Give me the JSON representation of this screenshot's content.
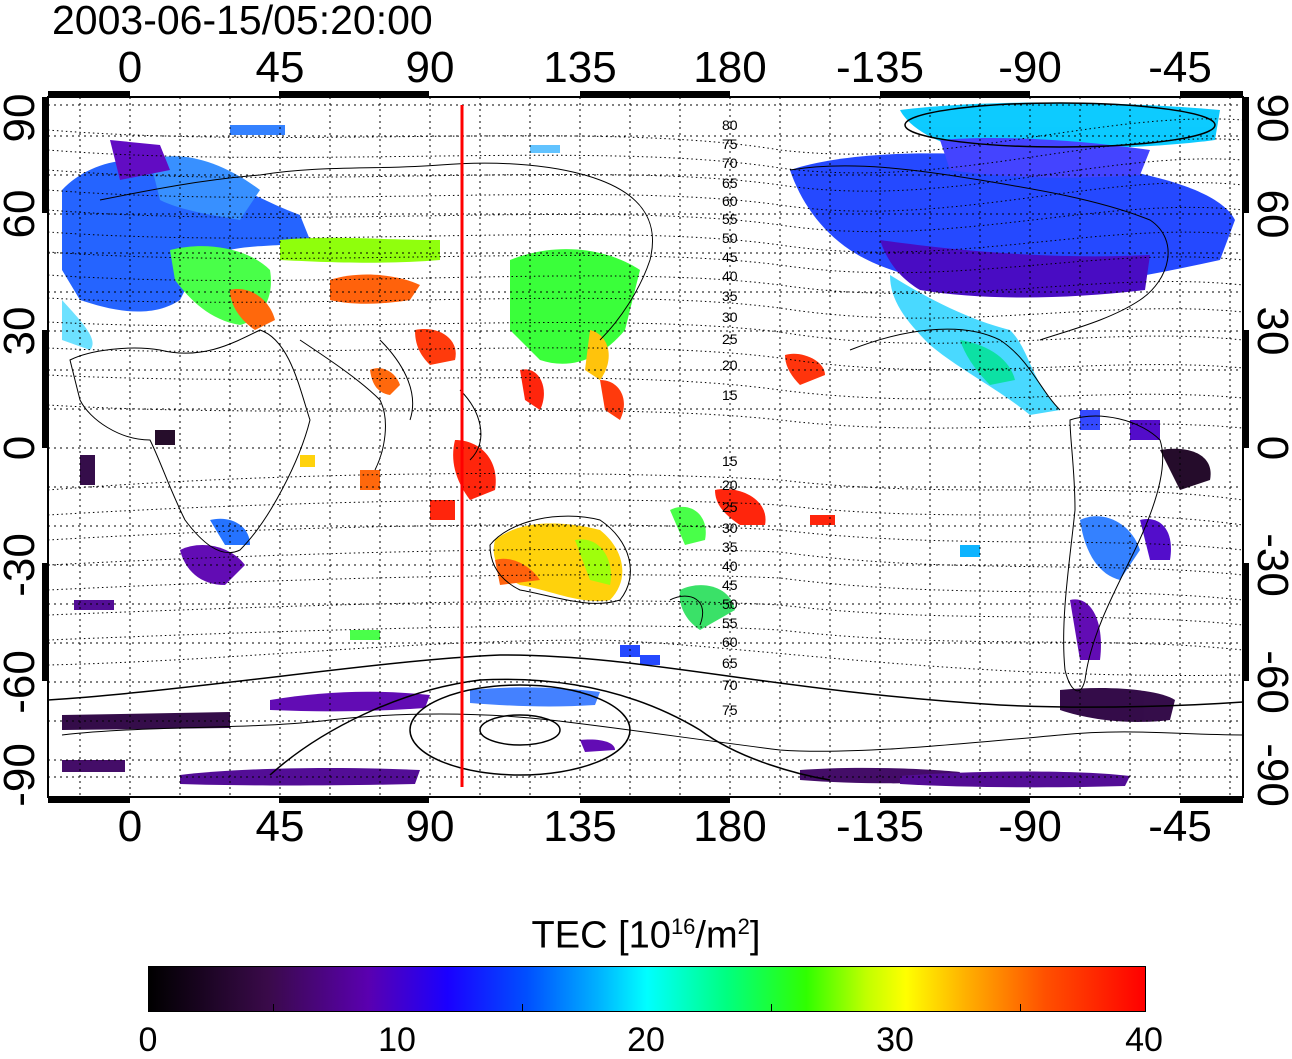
{
  "title": "2003-06-15/05:20:00",
  "lon_ticks": [
    "0",
    "45",
    "90",
    "135",
    "180",
    "-135",
    "-90",
    "-45"
  ],
  "lat_ticks": [
    "90",
    "60",
    "30",
    "0",
    "-30",
    "-60",
    "-90"
  ],
  "contour_labels": [
    "80",
    "75",
    "70",
    "65",
    "60",
    "55",
    "50",
    "45",
    "40",
    "35",
    "30",
    "25",
    "20",
    "15",
    "15",
    "20",
    "25",
    "30",
    "35",
    "40",
    "45",
    "50",
    "55",
    "60",
    "65",
    "70",
    "75"
  ],
  "colorbar": {
    "title": "TEC  [10",
    "title_sup1": "16",
    "title_mid": "/m",
    "title_sup2": "2",
    "title_end": "]",
    "ticks": [
      "0",
      "10",
      "20",
      "30",
      "40"
    ],
    "range": [
      0,
      40
    ]
  },
  "map": {
    "projection": "equirectangular",
    "lon_range_display": [
      -25,
      335
    ],
    "lat_range": [
      -90,
      90
    ],
    "marker_longitude": 100,
    "marker_color": "#ff0000"
  }
}
